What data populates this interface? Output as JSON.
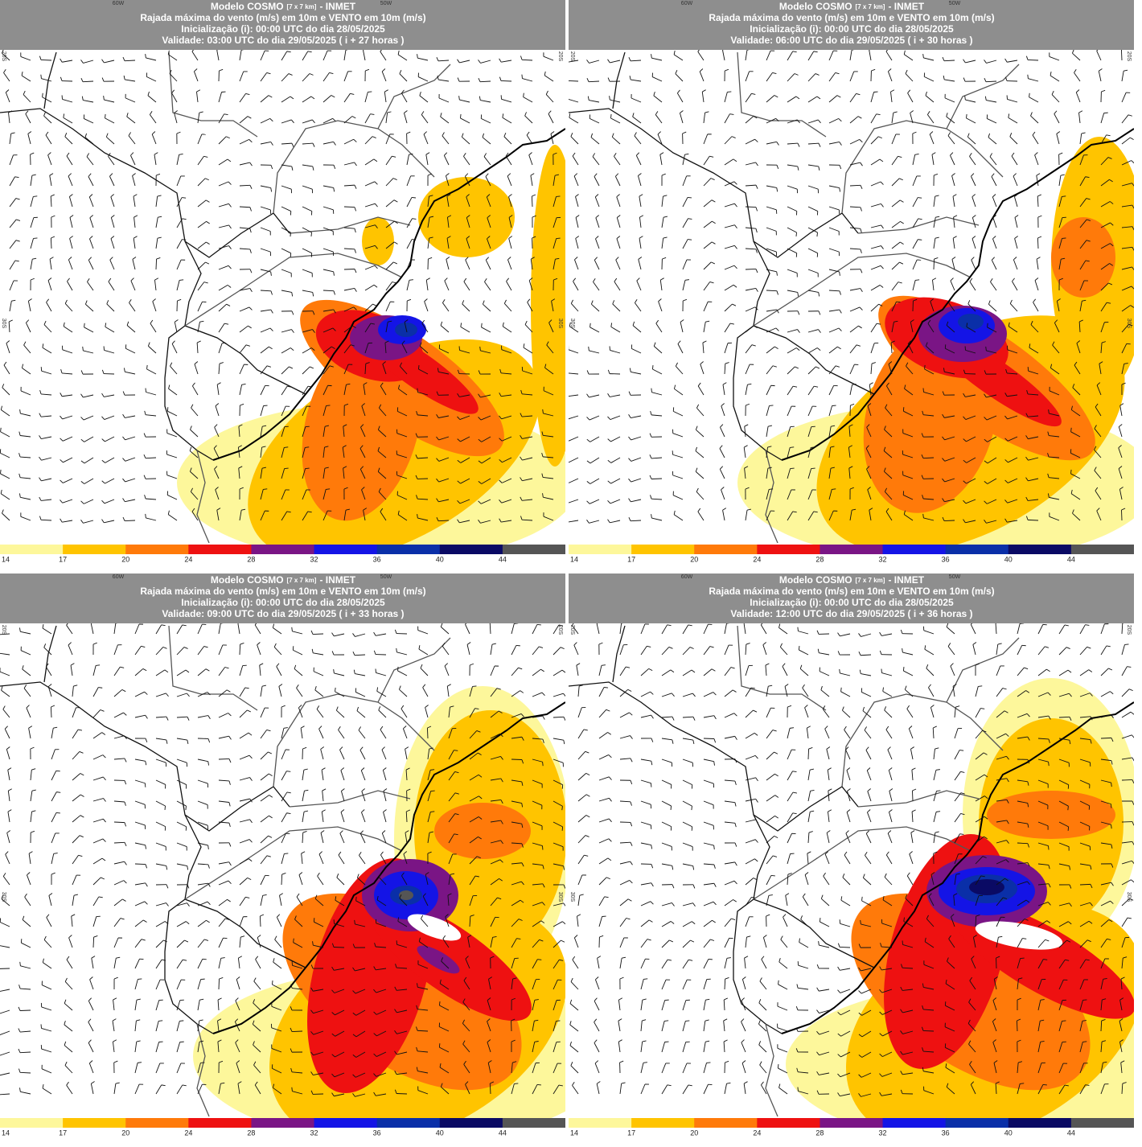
{
  "panels": [
    {
      "title": "Modelo COSMO",
      "resolution": "[7 x 7 km]",
      "source": "- INMET",
      "variable": "Rajada máxima do vento (m/s) em 10m e VENTO em 10m (m/s)",
      "init": "Inicialização (i): 00:00 UTC do dia 28/05/2025",
      "valid": "Validade: 03:00 UTC do dia 29/05/2025 ( i + 27 horas )"
    },
    {
      "title": "Modelo COSMO",
      "resolution": "[7 x 7 km]",
      "source": "- INMET",
      "variable": "Rajada máxima do vento (m/s) em 10m e VENTO em 10m (m/s)",
      "init": "Inicialização (i): 00:00 UTC do dia 28/05/2025",
      "valid": "Validade: 06:00 UTC do dia 29/05/2025 ( i + 30 horas )"
    },
    {
      "title": "Modelo COSMO",
      "resolution": "[7 x 7 km]",
      "source": "- INMET",
      "variable": "Rajada máxima do vento (m/s) em 10m e VENTO em 10m (m/s)",
      "init": "Inicialização (i): 00:00 UTC do dia 28/05/2025",
      "valid": "Validade: 09:00 UTC do dia 29/05/2025 ( i + 33 horas )"
    },
    {
      "title": "Modelo COSMO",
      "resolution": "[7 x 7 km]",
      "source": "- INMET",
      "variable": "Rajada máxima do vento (m/s) em 10m e VENTO em 10m (m/s)",
      "init": "Inicialização (i): 00:00 UTC do dia 28/05/2025",
      "valid": "Validade: 12:00 UTC do dia 29/05/2025 ( i + 36 horas )"
    }
  ],
  "grid_labels": {
    "lon": [
      "60W",
      "50W"
    ],
    "lat": [
      "20S",
      "30S"
    ]
  },
  "colorbar": {
    "levels": [
      14,
      17,
      20,
      24,
      28,
      32,
      36,
      40,
      44
    ],
    "colors": [
      "#fdf79b",
      "#ffc400",
      "#ff7a0a",
      "#ee1111",
      "#7a1585",
      "#1414e6",
      "#0a2fa8",
      "#0a0a64",
      "#555555"
    ]
  }
}
